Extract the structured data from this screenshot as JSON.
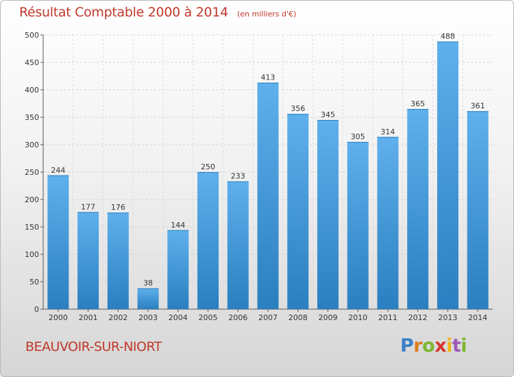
{
  "header": {
    "title": "Résultat Comptable 2000 à 2014",
    "subtitle": "(en milliers d'€)"
  },
  "footer": {
    "commune": "BEAUVOIR-SUR-NIORT",
    "logo": [
      "P",
      "r",
      "o",
      "x",
      "i",
      "t",
      "i"
    ]
  },
  "colors": {
    "title": "#c0392b",
    "bar_top": "#5fb0ec",
    "bar_bottom": "#2a7fc0"
  },
  "chart_data": {
    "type": "bar",
    "title": "Résultat Comptable 2000 à 2014",
    "subtitle": "(en milliers d'€)",
    "xlabel": "",
    "ylabel": "",
    "categories": [
      "2000",
      "2001",
      "2002",
      "2003",
      "2004",
      "2005",
      "2006",
      "2007",
      "2008",
      "2009",
      "2010",
      "2011",
      "2012",
      "2013",
      "2014"
    ],
    "values": [
      244,
      177,
      176,
      38,
      144,
      250,
      233,
      413,
      356,
      345,
      305,
      314,
      365,
      488,
      361
    ],
    "ylim": [
      0,
      500
    ],
    "yticks": [
      0,
      50,
      100,
      150,
      200,
      250,
      300,
      350,
      400,
      450,
      500
    ],
    "grid": true,
    "legend": "none",
    "data_labels": true
  }
}
